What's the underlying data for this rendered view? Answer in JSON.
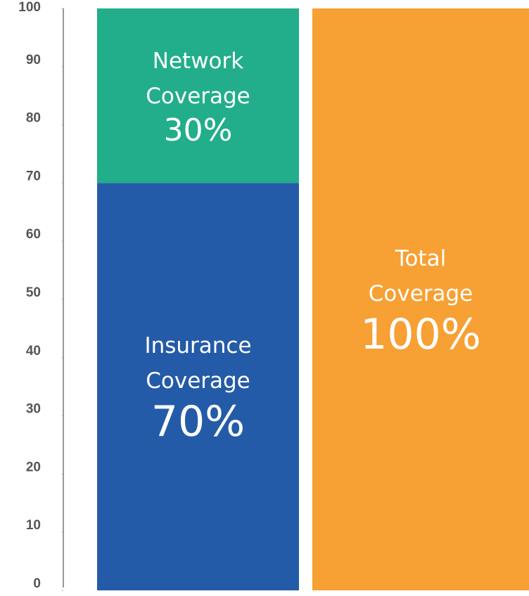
{
  "chart_data": {
    "type": "stacked_bar",
    "categories": [
      null,
      null
    ],
    "series": [
      {
        "name": "Insurance Coverage",
        "color": "#245ba8",
        "values": [
          70,
          null
        ],
        "value_labels": [
          "70%",
          null
        ]
      },
      {
        "name": "Network Coverage",
        "color": "#22ae8a",
        "values": [
          30,
          null
        ],
        "value_labels": [
          "30%",
          null
        ]
      },
      {
        "name": "Total Coverage",
        "color": "#f7a033",
        "values": [
          null,
          100
        ],
        "value_labels": [
          null,
          "100%"
        ]
      }
    ],
    "ylim": [
      0,
      100
    ],
    "yticks": [
      0,
      10,
      20,
      30,
      40,
      50,
      60,
      70,
      80,
      90,
      100
    ]
  }
}
